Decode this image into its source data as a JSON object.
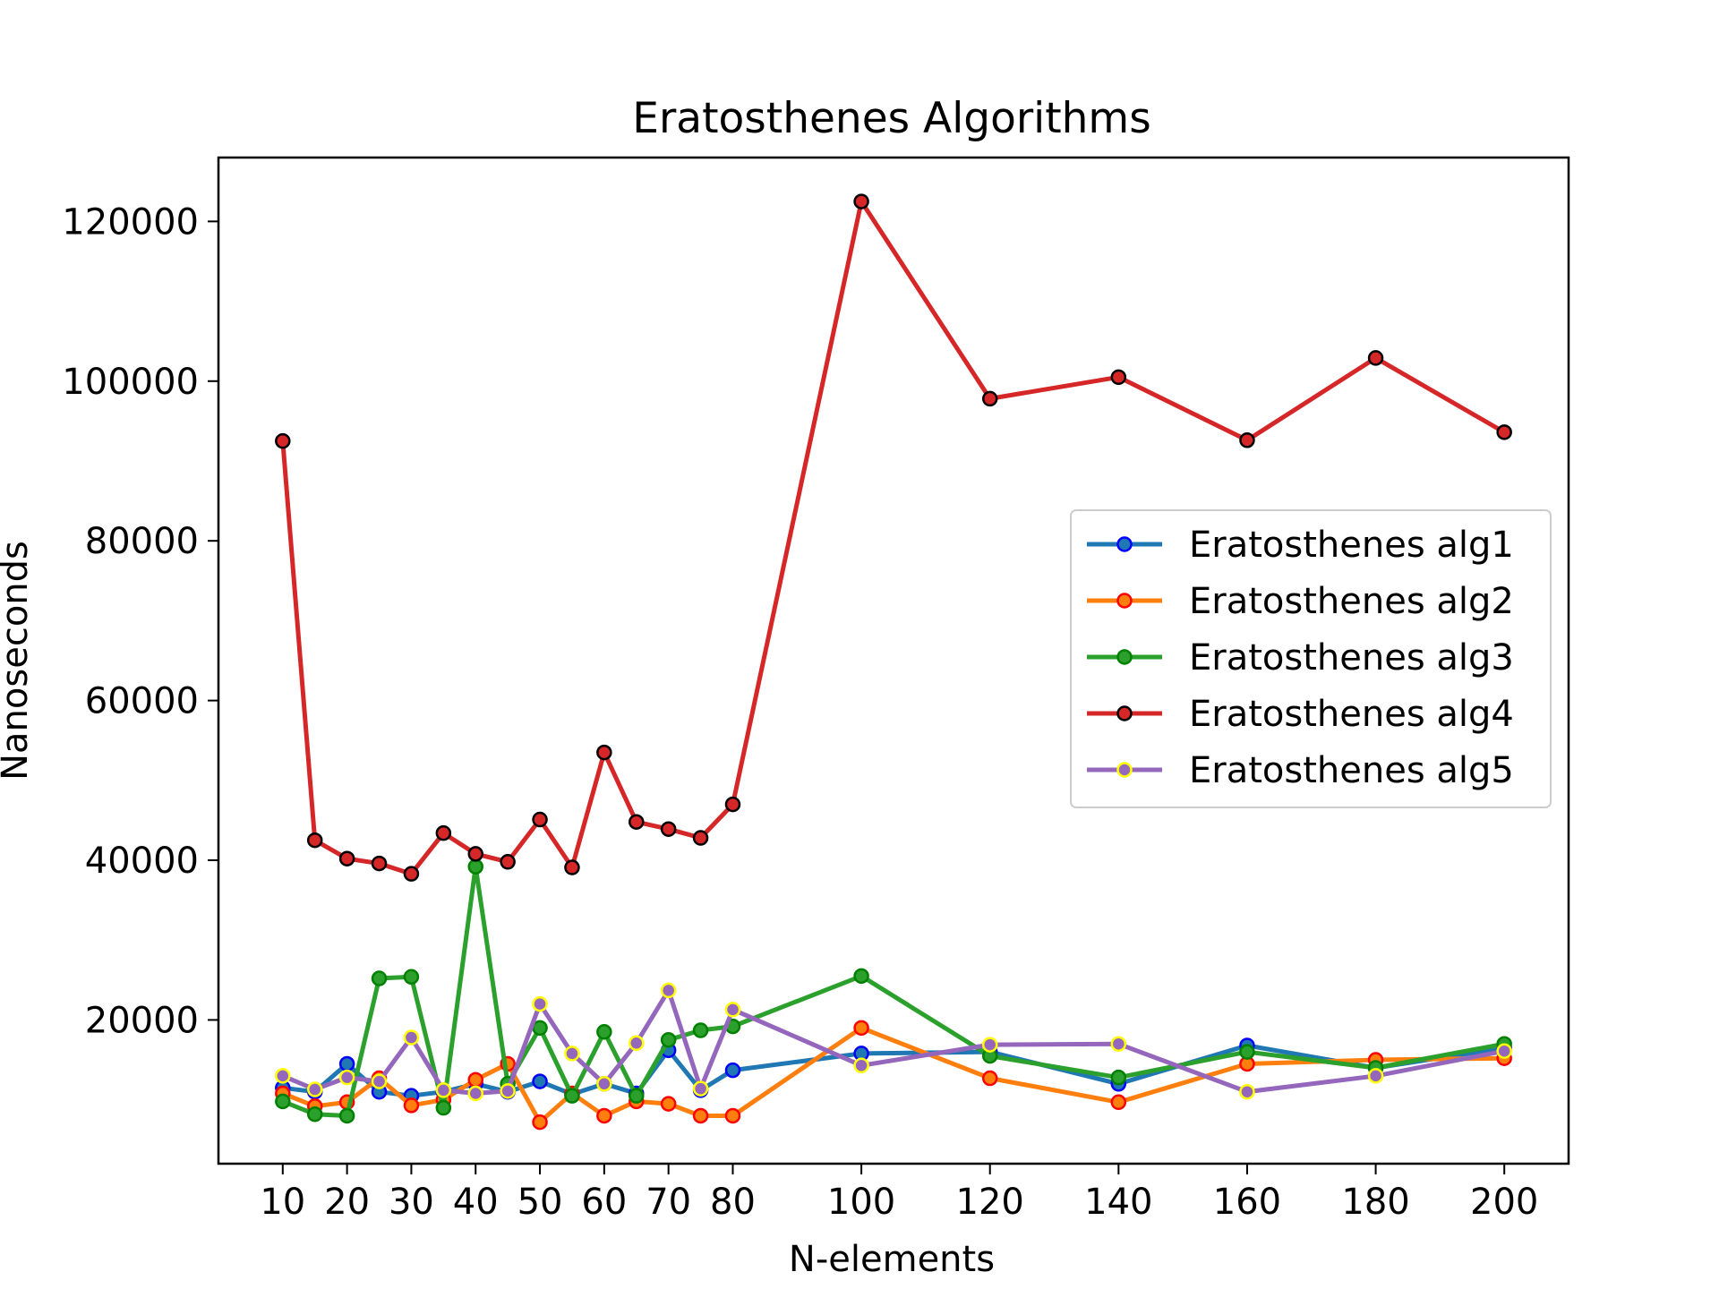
{
  "chart_data": {
    "type": "line",
    "title": "Eratosthenes Algorithms",
    "xlabel": "N-elements",
    "ylabel": "Nanoseconds",
    "x": [
      10,
      15,
      20,
      25,
      30,
      35,
      40,
      45,
      50,
      55,
      60,
      65,
      70,
      75,
      80,
      100,
      120,
      140,
      160,
      180,
      200
    ],
    "xticks": [
      10,
      20,
      30,
      40,
      50,
      60,
      70,
      80,
      100,
      120,
      140,
      160,
      180,
      200
    ],
    "xlim": [
      0,
      210
    ],
    "yticks": [
      20000,
      40000,
      60000,
      80000,
      100000,
      120000
    ],
    "ylim": [
      2000,
      128000
    ],
    "grid": false,
    "legend_position": "center-right",
    "series": [
      {
        "name": "Eratosthenes alg1",
        "color": "#1f77b4",
        "marker_face": "#1f77b4",
        "marker_edge": "#0000ff",
        "values": [
          11500,
          11000,
          14500,
          11000,
          10500,
          11000,
          12000,
          11000,
          12300,
          10700,
          12000,
          10800,
          16200,
          11200,
          13700,
          15800,
          16000,
          12000,
          16800,
          14000,
          16500
        ]
      },
      {
        "name": "Eratosthenes alg2",
        "color": "#ff7f0e",
        "marker_face": "#ff7f0e",
        "marker_edge": "#ff0000",
        "values": [
          10800,
          9200,
          9700,
          12700,
          9300,
          10000,
          12500,
          14500,
          7200,
          10800,
          8000,
          9800,
          9500,
          8000,
          8000,
          19000,
          12700,
          9700,
          14500,
          15000,
          15200
        ]
      },
      {
        "name": "Eratosthenes alg3",
        "color": "#2ca02c",
        "marker_face": "#2ca02c",
        "marker_edge": "#008000",
        "values": [
          9800,
          8200,
          8000,
          25200,
          25400,
          9000,
          39200,
          12000,
          19000,
          10500,
          18500,
          10500,
          17500,
          18700,
          19200,
          25500,
          15500,
          12800,
          16000,
          14000,
          17000
        ]
      },
      {
        "name": "Eratosthenes alg4",
        "color": "#d62728",
        "marker_face": "#d62728",
        "marker_edge": "#000000",
        "values": [
          92500,
          42500,
          40200,
          39600,
          38300,
          43400,
          40800,
          39800,
          45100,
          39100,
          53500,
          44800,
          43900,
          42800,
          47000,
          122500,
          97800,
          100500,
          92600,
          102900,
          93600
        ]
      },
      {
        "name": "Eratosthenes alg5",
        "color": "#9467bd",
        "marker_face": "#9467bd",
        "marker_edge": "#ffff00",
        "values": [
          13000,
          11300,
          12800,
          12300,
          17800,
          11200,
          10800,
          11100,
          22000,
          15800,
          12000,
          17100,
          23700,
          11400,
          21300,
          14300,
          16900,
          17000,
          11000,
          13000,
          16100
        ]
      }
    ]
  }
}
